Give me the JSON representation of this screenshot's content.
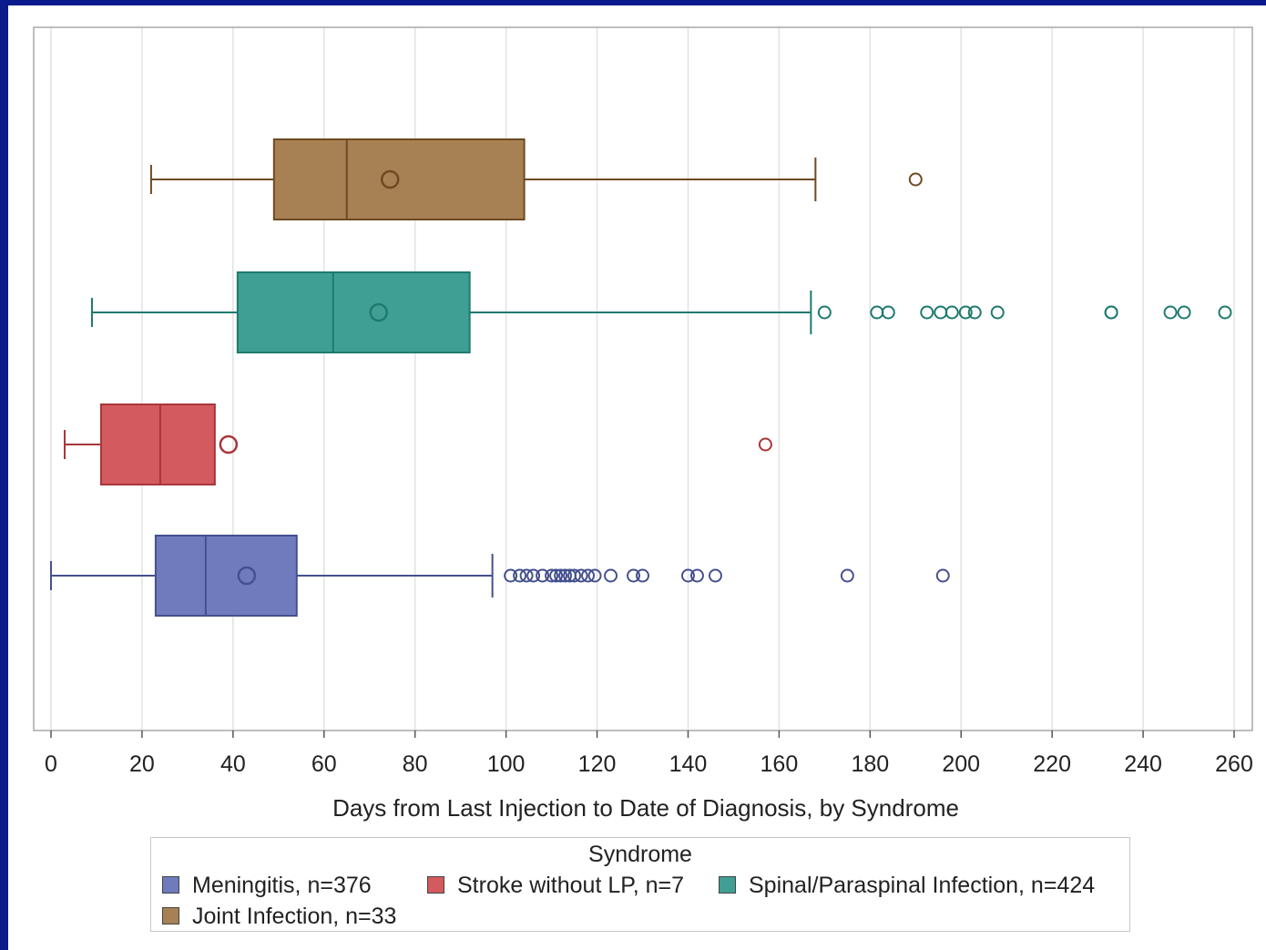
{
  "chart_data": {
    "type": "boxplot",
    "orientation": "horizontal",
    "xlabel": "Days from Last Injection to Date of Diagnosis, by Syndrome",
    "xlim": [
      0,
      260
    ],
    "xticks": [
      0,
      20,
      40,
      60,
      80,
      100,
      120,
      140,
      160,
      180,
      200,
      220,
      240,
      260
    ],
    "grid": "vertical",
    "legend": {
      "title": "Syndrome",
      "position": "bottom",
      "entries": [
        {
          "label": "Meningitis, n=376",
          "color": "#6f7bbd"
        },
        {
          "label": "Stroke without LP, n=7",
          "color": "#d35a5e"
        },
        {
          "label": "Spinal/Paraspinal Infection, n=424",
          "color": "#3f9f94"
        },
        {
          "label": "Joint Infection, n=33",
          "color": "#a78153"
        }
      ]
    },
    "series": [
      {
        "color": "#a78153",
        "edge": "#6e4a22",
        "whisker_low": 22,
        "q1": 49,
        "median": 65,
        "q3": 104,
        "whisker_high": 168,
        "mean": 74.5,
        "outliers": [
          190
        ]
      },
      {
        "color": "#3f9f94",
        "edge": "#1e7a6f",
        "whisker_low": 9,
        "q1": 41,
        "median": 62,
        "q3": 92,
        "whisker_high": 167,
        "mean": 72,
        "outliers": [
          170,
          181.5,
          184,
          192.5,
          195.5,
          198,
          201,
          203,
          208,
          233,
          233,
          246,
          249,
          258
        ]
      },
      {
        "color": "#d35a5e",
        "edge": "#a8363a",
        "whisker_low": 3,
        "q1": 11,
        "median": 24,
        "q3": 36,
        "whisker_high": 36,
        "mean": 39,
        "outliers": [
          157
        ]
      },
      {
        "color": "#6f7bbd",
        "edge": "#45508f",
        "whisker_low": 0,
        "q1": 23,
        "median": 34,
        "q3": 54,
        "whisker_high": 97,
        "mean": 43,
        "outliers": [
          101,
          103,
          104.5,
          106,
          108,
          110,
          111,
          112,
          113,
          114,
          115,
          116.5,
          118,
          119.5,
          123,
          128,
          130,
          140,
          142,
          146,
          175,
          196
        ]
      }
    ]
  }
}
